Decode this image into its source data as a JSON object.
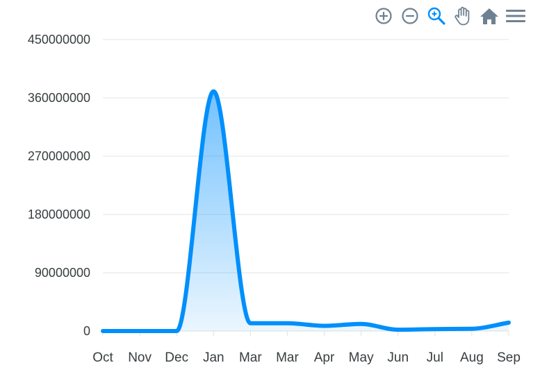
{
  "toolbar": {
    "icons": [
      "zoom-in-icon",
      "zoom-out-icon",
      "selection-zoom-icon",
      "pan-hand-icon",
      "reset-home-icon",
      "menu-icon"
    ],
    "icon_color": "#6e8192",
    "active_icon_color": "#008ffb"
  },
  "chart_data": {
    "type": "area",
    "title": "",
    "xlabel": "",
    "ylabel": "",
    "categories": [
      "Oct",
      "Nov",
      "Dec",
      "Jan",
      "Mar",
      "Mar",
      "Apr",
      "May",
      "Jun",
      "Jul",
      "Aug",
      "Sep"
    ],
    "series": [
      {
        "values": [
          0,
          0,
          0,
          370000000,
          12000000,
          12000000,
          8000000,
          11000000,
          2000000,
          3000000,
          3500000,
          13000000
        ],
        "color": "#008ffb"
      }
    ],
    "ylim": [
      0,
      450000000
    ],
    "yticks": [
      0,
      90000000,
      180000000,
      270000000,
      360000000,
      450000000
    ],
    "ytick_labels": [
      "0",
      "90000000",
      "180000000",
      "270000000",
      "360000000",
      "450000000"
    ],
    "grid": true,
    "legend": "none"
  }
}
